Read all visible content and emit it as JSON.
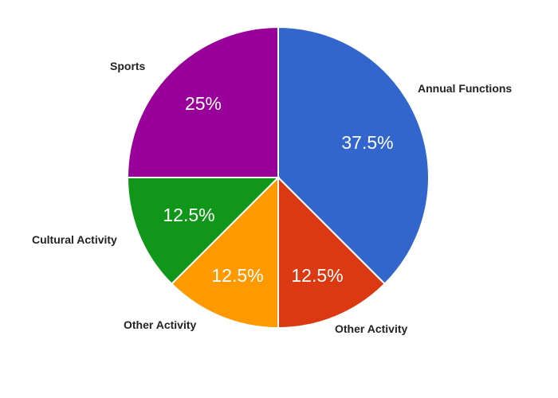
{
  "chart_data": {
    "type": "pie",
    "title": "",
    "slices": [
      {
        "label": "Annual Functions",
        "value": 37.5,
        "display": "37.5%",
        "color": "#3366cc"
      },
      {
        "label": "Other Activity",
        "value": 12.5,
        "display": "12.5%",
        "color": "#dc3912"
      },
      {
        "label": "Other Activity",
        "value": 12.5,
        "display": "12.5%",
        "color": "#ff9900"
      },
      {
        "label": "Cultural Activity",
        "value": 12.5,
        "display": "12.5%",
        "color": "#109618"
      },
      {
        "label": "Sports",
        "value": 25,
        "display": "25%",
        "color": "#990099"
      }
    ],
    "start_angle_deg": 0,
    "direction": "clockwise",
    "legend": "labels-outside"
  }
}
